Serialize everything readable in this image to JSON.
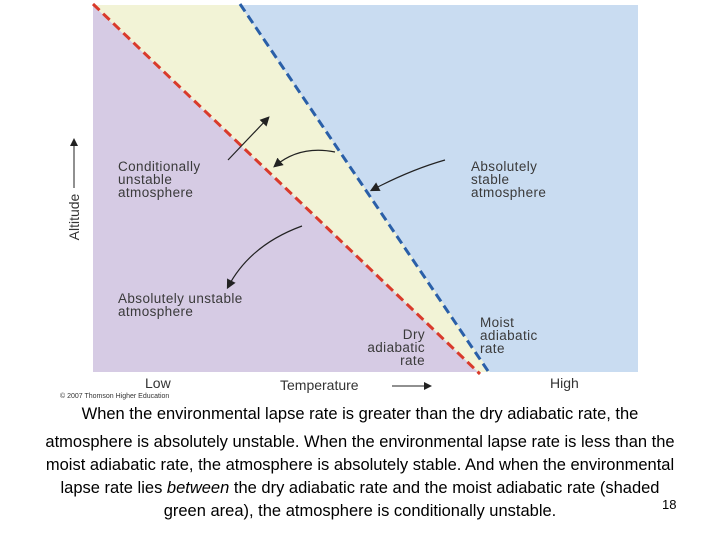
{
  "diagram": {
    "regions": {
      "conditionally_unstable": [
        "Conditionally",
        "unstable",
        "atmosphere"
      ],
      "absolutely_stable": [
        "Absolutely",
        "stable",
        "atmosphere"
      ],
      "absolutely_unstable": [
        "Absolutely unstable",
        "atmosphere"
      ]
    },
    "lines": {
      "dry": [
        "Dry",
        "adiabatic",
        "rate"
      ],
      "moist": [
        "Moist",
        "adiabatic",
        "rate"
      ]
    },
    "axes": {
      "y_label": "Altitude",
      "x_label": "Temperature",
      "x_low": "Low",
      "x_high": "High"
    },
    "credit": "© 2007 Thomson Higher Education"
  },
  "caption": {
    "lines": [
      "When the environmental lapse rate is greater than the dry adiabatic rate, the",
      "atmosphere is absolutely unstable. When the environmental lapse rate is less than the",
      "moist adiabatic rate, the atmosphere is absolutely stable. And when the environmental"
    ],
    "line4": [
      "lapse rate lies ",
      "between",
      " the dry adiabatic rate and the moist adiabatic rate (shaded"
    ],
    "line5": "green area), the atmosphere is conditionally unstable."
  },
  "page_number": "18"
}
